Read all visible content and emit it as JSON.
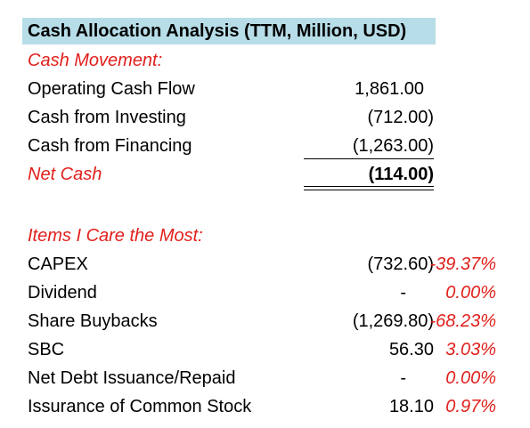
{
  "title": "Cash Allocation Analysis (TTM, Million, USD)",
  "cash_movement": {
    "header": "Cash Movement:",
    "rows": [
      {
        "label": "Operating Cash Flow",
        "value": "1,861.00"
      },
      {
        "label": "Cash from Investing",
        "value": "(712.00)"
      },
      {
        "label": "Cash from Financing",
        "value": "(1,263.00)"
      }
    ],
    "net_label": "Net Cash",
    "net_value": "(114.00)"
  },
  "items": {
    "header": "Items I Care the Most:",
    "rows": [
      {
        "label": "CAPEX",
        "value": "(732.60)",
        "pct": "-39.37%"
      },
      {
        "label": "Dividend",
        "value": "-",
        "pct": "0.00%"
      },
      {
        "label": "Share Buybacks",
        "value": "(1,269.80)",
        "pct": "-68.23%"
      },
      {
        "label": "SBC",
        "value": "56.30",
        "pct": "3.03%"
      },
      {
        "label": "Net Debt Issuance/Repaid",
        "value": "-",
        "pct": "0.00%"
      },
      {
        "label": "Issurance of Common Stock",
        "value": "18.10",
        "pct": "0.97%"
      }
    ]
  },
  "colors": {
    "accent_red": "#e0201c",
    "title_fill": "#b7dde8"
  }
}
